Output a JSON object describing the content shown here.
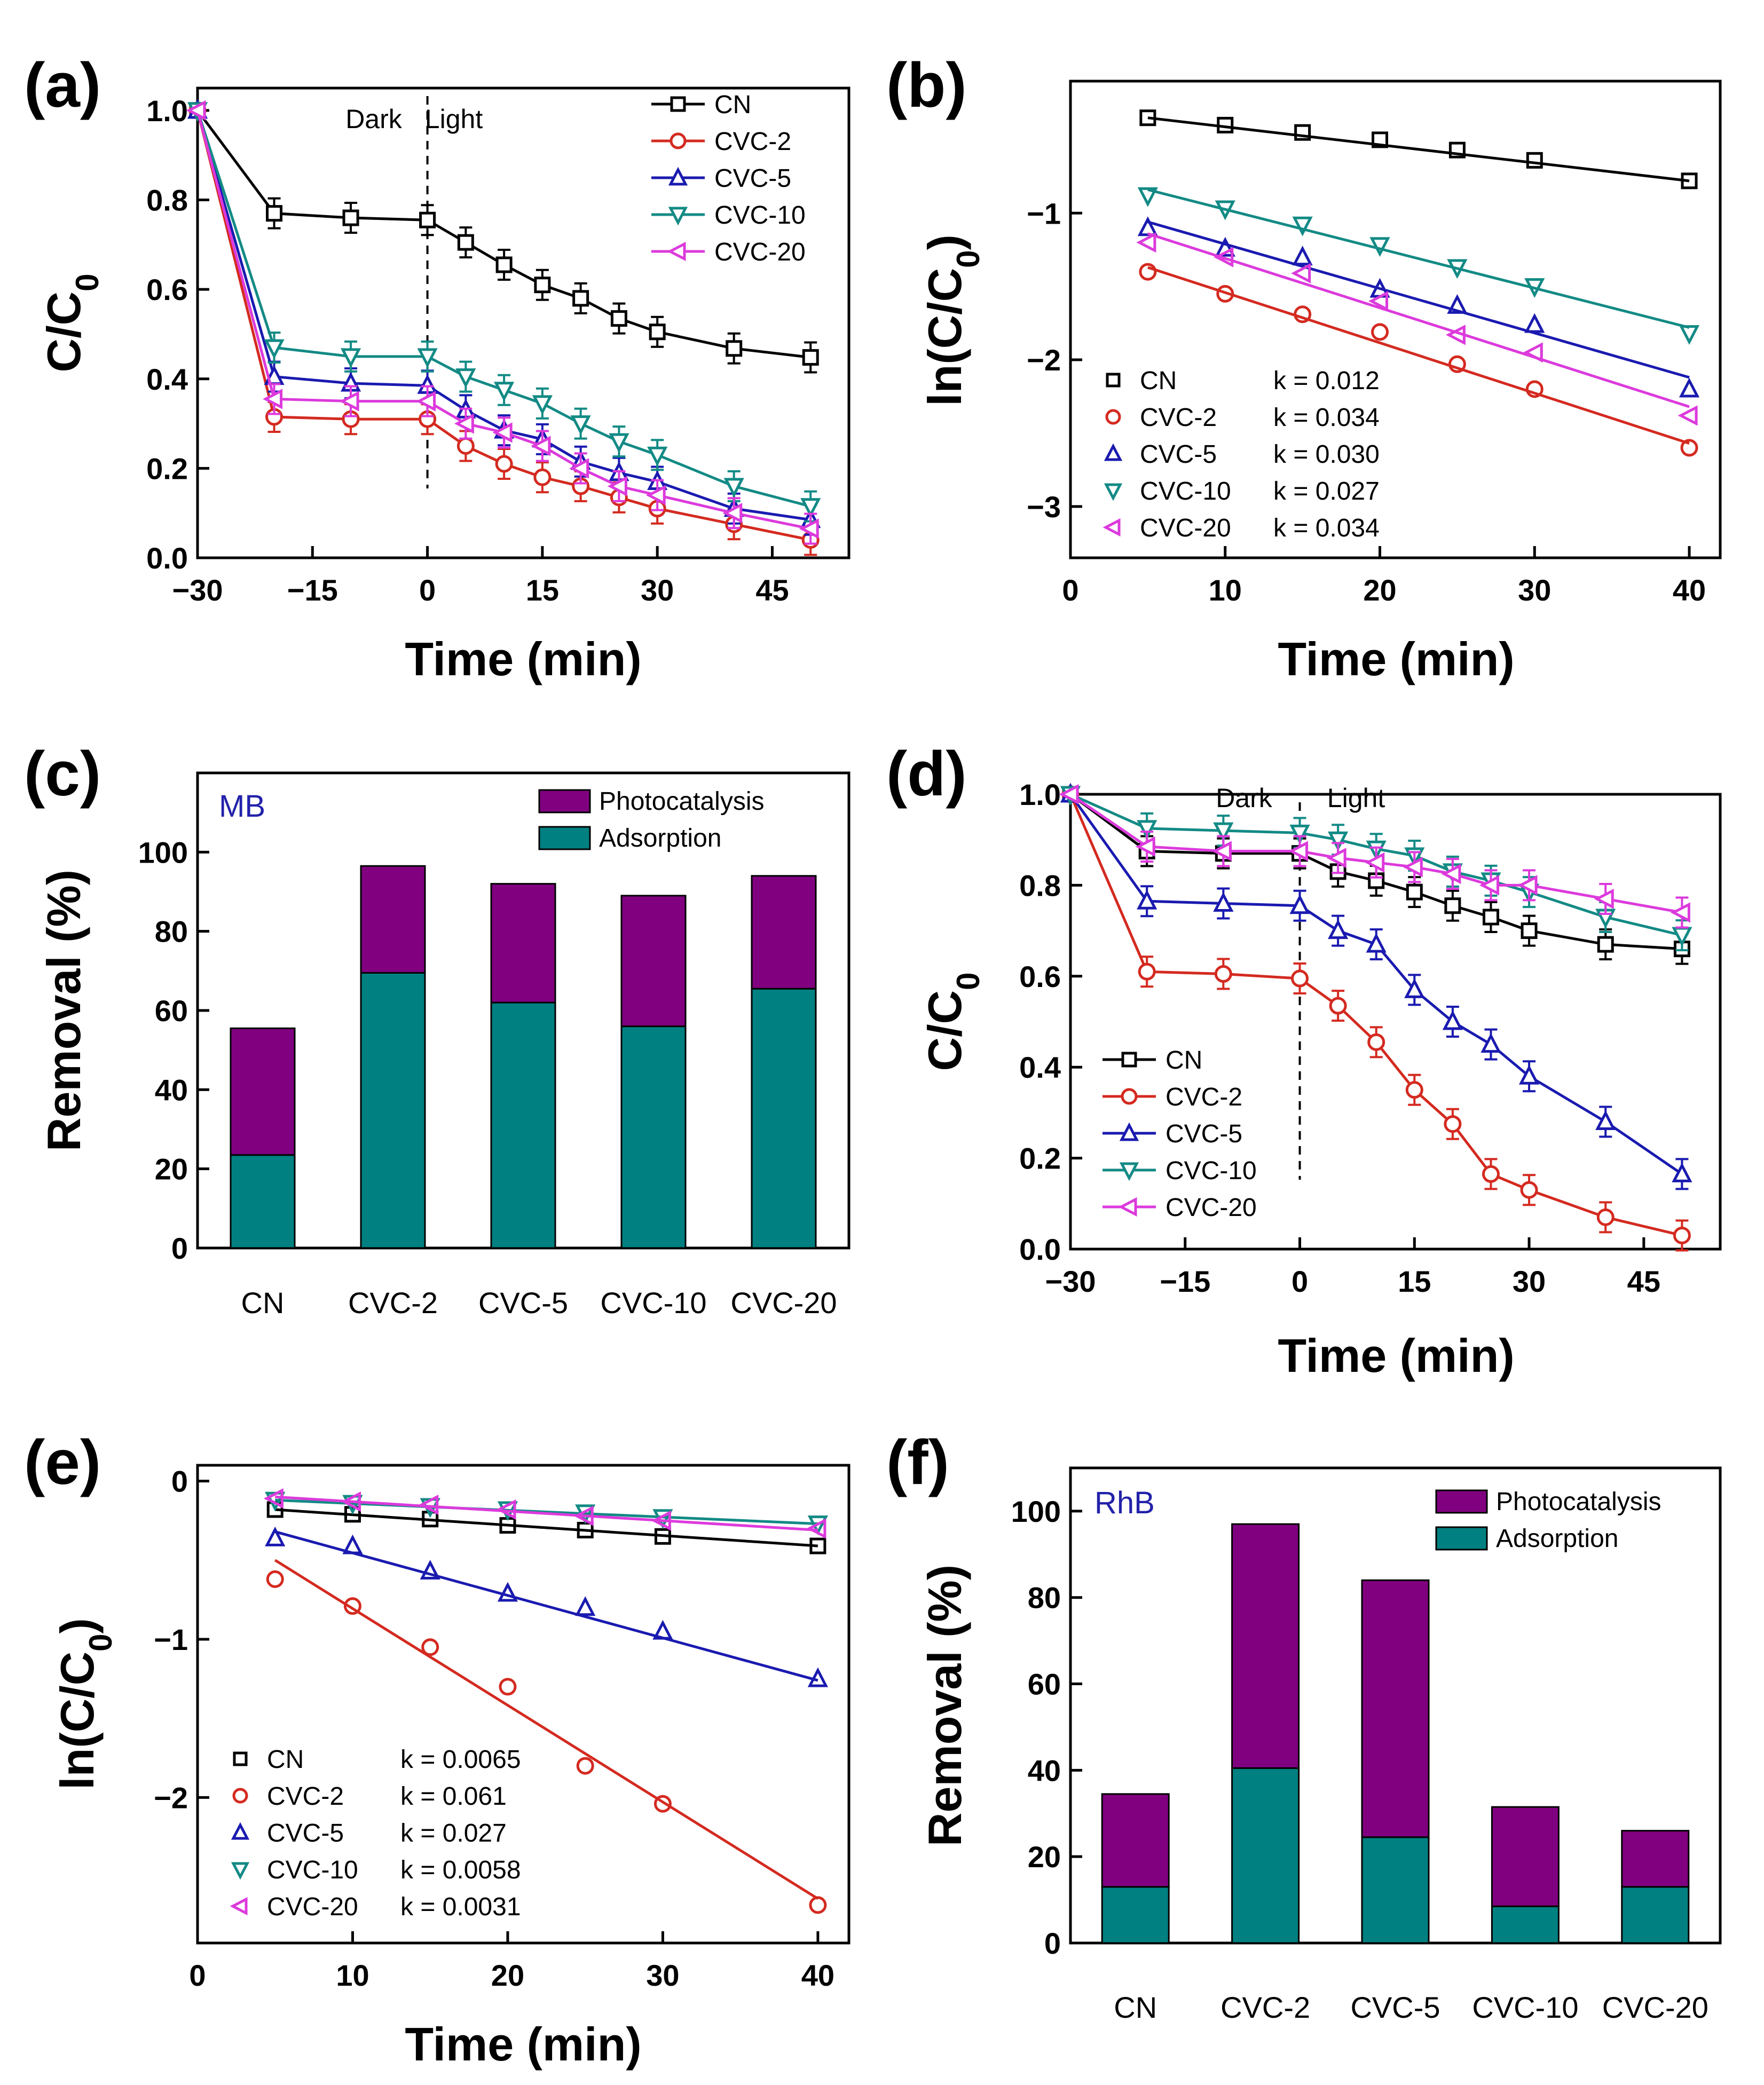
{
  "colors": {
    "CN": "#000000",
    "CVC-2": "#d42a20",
    "CVC-5": "#1a1ab0",
    "CVC-10": "#138a85",
    "CVC-20": "#dc3adc",
    "photocatalysis": "#800080",
    "adsorption": "#008080",
    "tag_text": "#2222aa"
  },
  "chart_data": [
    {
      "id": "a",
      "panel_label": "(a)",
      "type": "line",
      "xlabel": "Time (min)",
      "ylabel": "C/C0",
      "xlim": [
        -30,
        55
      ],
      "ylim": [
        0,
        1.05
      ],
      "xticks": [
        -30,
        -15,
        0,
        15,
        30,
        45
      ],
      "xtick_labels": [
        "−30",
        "−15",
        "0",
        "15",
        "30",
        "45"
      ],
      "yticks": [
        0,
        0.2,
        0.4,
        0.6,
        0.8,
        1.0
      ],
      "ytick_labels": [
        "0.0",
        "0.2",
        "0.4",
        "0.6",
        "0.8",
        "1.0"
      ],
      "annotations": [
        "Dark",
        "Light"
      ],
      "divider_x": 0,
      "legend": "top-right",
      "x": [
        -30,
        -20,
        -10,
        0,
        5,
        10,
        15,
        20,
        25,
        30,
        40,
        50
      ],
      "series": [
        {
          "name": "CN",
          "marker": "square",
          "values": [
            1.0,
            0.77,
            0.76,
            0.755,
            0.705,
            0.655,
            0.61,
            0.58,
            0.535,
            0.505,
            0.468,
            0.448
          ]
        },
        {
          "name": "CVC-2",
          "marker": "circle",
          "values": [
            1.0,
            0.315,
            0.31,
            0.31,
            0.25,
            0.21,
            0.18,
            0.16,
            0.135,
            0.11,
            0.075,
            0.04
          ]
        },
        {
          "name": "CVC-5",
          "marker": "triangle-up",
          "values": [
            1.0,
            0.405,
            0.39,
            0.385,
            0.33,
            0.285,
            0.265,
            0.215,
            0.19,
            0.17,
            0.11,
            0.085
          ]
        },
        {
          "name": "CVC-10",
          "marker": "triangle-down",
          "values": [
            1.0,
            0.47,
            0.45,
            0.45,
            0.405,
            0.375,
            0.345,
            0.3,
            0.26,
            0.23,
            0.16,
            0.115
          ]
        },
        {
          "name": "CVC-20",
          "marker": "triangle-left",
          "values": [
            1.0,
            0.355,
            0.35,
            0.35,
            0.3,
            0.28,
            0.25,
            0.2,
            0.16,
            0.14,
            0.1,
            0.065
          ]
        }
      ]
    },
    {
      "id": "b",
      "panel_label": "(b)",
      "type": "scatter",
      "xlabel": "Time (min)",
      "ylabel": "ln(C/C0)",
      "xlim": [
        0,
        42
      ],
      "ylim": [
        -3.35,
        -0.1
      ],
      "xticks": [
        0,
        10,
        20,
        30,
        40
      ],
      "xtick_labels": [
        "0",
        "10",
        "20",
        "30",
        "40"
      ],
      "yticks": [
        -1,
        -2,
        -3
      ],
      "ytick_labels": [
        "−1",
        "−2",
        "−3"
      ],
      "legend": "bottom-left",
      "x": [
        5,
        10,
        15,
        20,
        25,
        30,
        40
      ],
      "series": [
        {
          "name": "CN",
          "marker": "square",
          "k_label": "k = 0.012",
          "values": [
            -0.35,
            -0.4,
            -0.45,
            -0.5,
            -0.57,
            -0.64,
            -0.78
          ],
          "fit": [
            -0.35,
            -0.78
          ]
        },
        {
          "name": "CVC-2",
          "marker": "circle",
          "k_label": "k = 0.034",
          "values": [
            -1.4,
            -1.55,
            -1.69,
            -1.81,
            -2.03,
            -2.2,
            -2.6
          ],
          "fit": [
            -1.37,
            -2.57
          ]
        },
        {
          "name": "CVC-5",
          "marker": "triangle-up",
          "k_label": "k = 0.030",
          "values": [
            -1.1,
            -1.24,
            -1.3,
            -1.52,
            -1.63,
            -1.76,
            -2.2
          ],
          "fit": [
            -1.06,
            -2.12
          ]
        },
        {
          "name": "CVC-10",
          "marker": "triangle-down",
          "k_label": "k = 0.027",
          "values": [
            -0.88,
            -0.97,
            -1.08,
            -1.22,
            -1.37,
            -1.5,
            -1.82
          ],
          "fit": [
            -0.84,
            -1.78
          ]
        },
        {
          "name": "CVC-20",
          "marker": "triangle-left",
          "k_label": "k = 0.034",
          "values": [
            -1.2,
            -1.3,
            -1.41,
            -1.6,
            -1.83,
            -1.95,
            -2.38
          ],
          "fit": [
            -1.14,
            -2.32
          ]
        }
      ]
    },
    {
      "id": "c",
      "panel_label": "(c)",
      "type": "bar",
      "stacked": true,
      "tag": "MB",
      "ylabel": "Removal (%)",
      "ylim": [
        0,
        120
      ],
      "yticks": [
        0,
        20,
        40,
        60,
        80,
        100
      ],
      "ytick_labels": [
        "0",
        "20",
        "40",
        "60",
        "80",
        "100"
      ],
      "categories": [
        "CN",
        "CVC-2",
        "CVC-5",
        "CVC-10",
        "CVC-20"
      ],
      "legend": "top-right",
      "series": [
        {
          "name": "Adsorption",
          "values": [
            23.5,
            69.5,
            62,
            56,
            65.5
          ]
        },
        {
          "name": "Photocatalysis",
          "values": [
            32,
            27,
            30,
            33,
            28.5
          ]
        }
      ]
    },
    {
      "id": "d",
      "panel_label": "(d)",
      "type": "line",
      "xlabel": "Time (min)",
      "ylabel": "C/C0",
      "xlim": [
        -30,
        55
      ],
      "ylim": [
        0,
        1.0
      ],
      "xticks": [
        -30,
        -15,
        0,
        15,
        30,
        45
      ],
      "xtick_labels": [
        "−30",
        "−15",
        "0",
        "15",
        "30",
        "45"
      ],
      "yticks": [
        0,
        0.2,
        0.4,
        0.6,
        0.8,
        1.0
      ],
      "ytick_labels": [
        "0.0",
        "0.2",
        "0.4",
        "0.6",
        "0.8",
        "1.0"
      ],
      "annotations": [
        "Dark",
        "Light"
      ],
      "divider_x": 0,
      "legend": "bottom-left",
      "x": [
        -30,
        -20,
        -10,
        0,
        5,
        10,
        15,
        20,
        25,
        30,
        40,
        50
      ],
      "series": [
        {
          "name": "CN",
          "marker": "square",
          "values": [
            1.0,
            0.875,
            0.87,
            0.87,
            0.83,
            0.81,
            0.785,
            0.755,
            0.73,
            0.7,
            0.67,
            0.66
          ]
        },
        {
          "name": "CVC-2",
          "marker": "circle",
          "values": [
            1.0,
            0.61,
            0.605,
            0.595,
            0.535,
            0.455,
            0.35,
            0.275,
            0.165,
            0.13,
            0.07,
            0.03
          ]
        },
        {
          "name": "CVC-5",
          "marker": "triangle-up",
          "values": [
            1.0,
            0.765,
            0.76,
            0.755,
            0.7,
            0.67,
            0.57,
            0.5,
            0.45,
            0.38,
            0.28,
            0.165
          ]
        },
        {
          "name": "CVC-10",
          "marker": "triangle-down",
          "values": [
            1.0,
            0.925,
            0.92,
            0.915,
            0.9,
            0.88,
            0.865,
            0.83,
            0.81,
            0.785,
            0.73,
            0.69
          ]
        },
        {
          "name": "CVC-20",
          "marker": "triangle-left",
          "values": [
            1.0,
            0.885,
            0.875,
            0.875,
            0.86,
            0.85,
            0.84,
            0.825,
            0.8,
            0.8,
            0.77,
            0.74
          ]
        }
      ]
    },
    {
      "id": "e",
      "panel_label": "(e)",
      "type": "scatter",
      "xlabel": "Time (min)",
      "ylabel": "ln(C/C0)",
      "xlim": [
        0,
        42
      ],
      "ylim": [
        -2.92,
        0.1
      ],
      "xticks": [
        0,
        10,
        20,
        30,
        40
      ],
      "xtick_labels": [
        "0",
        "10",
        "20",
        "30",
        "40"
      ],
      "yticks": [
        0,
        -1,
        -2
      ],
      "ytick_labels": [
        "0",
        "−1",
        "−2"
      ],
      "legend": "bottom-left",
      "x": [
        5,
        10,
        15,
        20,
        25,
        30,
        40
      ],
      "series": [
        {
          "name": "CN",
          "marker": "square",
          "k_label": "k = 0.0065",
          "values": [
            -0.18,
            -0.21,
            -0.24,
            -0.28,
            -0.31,
            -0.35,
            -0.41
          ],
          "fit": [
            -0.18,
            -0.41
          ]
        },
        {
          "name": "CVC-2",
          "marker": "circle",
          "k_label": "k = 0.061",
          "values": [
            -0.62,
            -0.79,
            -1.05,
            -1.3,
            -1.8,
            -2.04,
            -2.68
          ],
          "fit": [
            -0.5,
            -2.64
          ]
        },
        {
          "name": "CVC-5",
          "marker": "triangle-up",
          "k_label": "k = 0.027",
          "values": [
            -0.36,
            -0.41,
            -0.57,
            -0.71,
            -0.8,
            -0.95,
            -1.25
          ],
          "fit": [
            -0.32,
            -1.26
          ]
        },
        {
          "name": "CVC-10",
          "marker": "triangle-down",
          "k_label": "k = 0.0058",
          "values": [
            -0.12,
            -0.14,
            -0.16,
            -0.18,
            -0.2,
            -0.23,
            -0.27
          ],
          "fit": [
            -0.12,
            -0.27
          ]
        },
        {
          "name": "CVC-20",
          "marker": "triangle-left",
          "k_label": "k = 0.0031",
          "values": [
            -0.11,
            -0.13,
            -0.15,
            -0.18,
            -0.22,
            -0.25,
            -0.3
          ],
          "fit": [
            -0.1,
            -0.31
          ]
        }
      ]
    },
    {
      "id": "f",
      "panel_label": "(f)",
      "type": "bar",
      "stacked": true,
      "tag": "RhB",
      "ylabel": "Removal (%)",
      "ylim": [
        0,
        110
      ],
      "yticks": [
        0,
        20,
        40,
        60,
        80,
        100
      ],
      "ytick_labels": [
        "0",
        "20",
        "40",
        "60",
        "80",
        "100"
      ],
      "categories": [
        "CN",
        "CVC-2",
        "CVC-5",
        "CVC-10",
        "CVC-20"
      ],
      "legend": "top-right",
      "series": [
        {
          "name": "Adsorption",
          "values": [
            13,
            40.5,
            24.5,
            8.5,
            13
          ]
        },
        {
          "name": "Photocatalysis",
          "values": [
            21.5,
            56.5,
            59.5,
            23,
            13
          ]
        }
      ]
    }
  ]
}
